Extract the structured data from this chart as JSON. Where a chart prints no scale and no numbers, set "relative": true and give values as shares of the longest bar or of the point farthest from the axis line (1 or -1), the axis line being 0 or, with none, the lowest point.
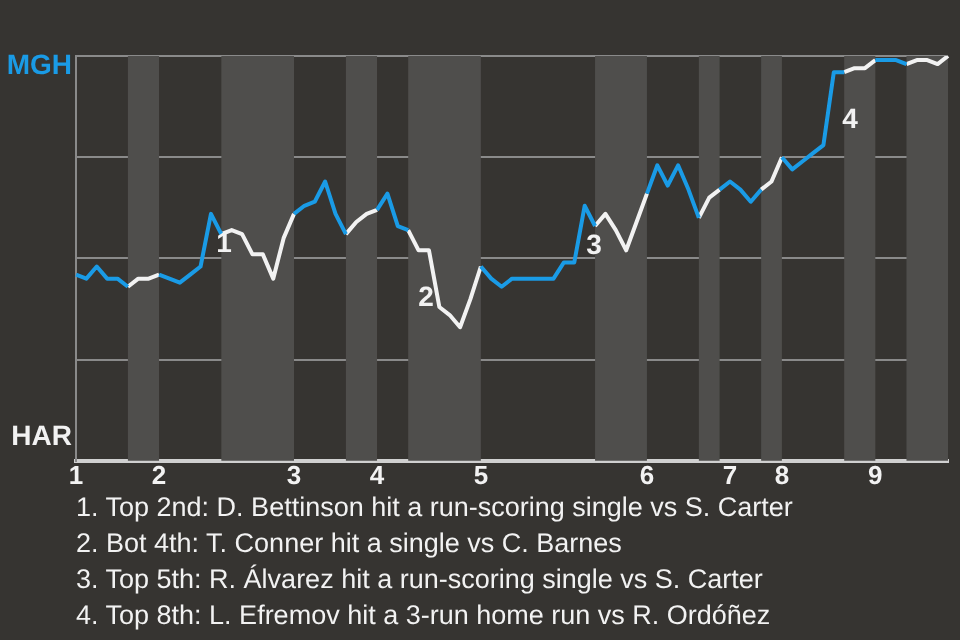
{
  "chart_data": {
    "type": "line",
    "relative": true,
    "categories": [
      "1",
      null,
      null,
      null,
      null,
      null,
      null,
      null,
      "2",
      null,
      null,
      null,
      null,
      null,
      null,
      null,
      null,
      null,
      null,
      null,
      null,
      "3",
      null,
      null,
      null,
      null,
      null,
      null,
      null,
      "4",
      null,
      null,
      null,
      null,
      null,
      null,
      null,
      null,
      null,
      "5",
      null,
      null,
      null,
      null,
      null,
      null,
      null,
      null,
      null,
      null,
      null,
      null,
      null,
      null,
      null,
      "6",
      null,
      null,
      null,
      null,
      null,
      null,
      null,
      "7",
      null,
      null,
      null,
      null,
      "8",
      null,
      null,
      null,
      null,
      null,
      null,
      null,
      null,
      "9",
      null,
      null,
      null,
      null,
      null,
      null,
      null
    ],
    "series": [
      {
        "color": "#1a9be6",
        "values": [
          0.46,
          0.45,
          0.48,
          0.45,
          0.45,
          0.43,
          null,
          null,
          0.46,
          0.45,
          0.44,
          0.46,
          0.48,
          0.61,
          0.56,
          null,
          null,
          null,
          null,
          null,
          null,
          0.61,
          0.63,
          0.64,
          0.69,
          0.61,
          0.56,
          null,
          null,
          0.62,
          0.66,
          0.58,
          0.57,
          null,
          null,
          null,
          null,
          null,
          null,
          0.48,
          0.45,
          0.43,
          0.45,
          0.45,
          0.45,
          0.45,
          0.45,
          0.49,
          0.49,
          0.63,
          0.58,
          null,
          null,
          null,
          null,
          0.66,
          0.73,
          0.68,
          0.73,
          0.67,
          0.6,
          null,
          0.67,
          0.69,
          0.67,
          0.64,
          0.67,
          null,
          0.75,
          0.72,
          0.74,
          0.76,
          0.78,
          0.96,
          0.96,
          null,
          null,
          0.99,
          0.99,
          0.99,
          0.98,
          null,
          null,
          null,
          null
        ]
      },
      {
        "color": "#f2f2f2",
        "values": [
          null,
          null,
          null,
          null,
          null,
          0.43,
          0.45,
          0.45,
          0.46,
          null,
          null,
          null,
          null,
          null,
          0.56,
          0.57,
          0.56,
          0.51,
          0.51,
          0.45,
          0.55,
          0.61,
          null,
          null,
          null,
          null,
          0.56,
          0.59,
          0.61,
          0.62,
          null,
          null,
          0.57,
          0.52,
          0.52,
          0.38,
          0.36,
          0.33,
          0.4,
          0.48,
          null,
          null,
          null,
          null,
          null,
          null,
          null,
          null,
          null,
          null,
          0.58,
          0.61,
          0.57,
          0.52,
          0.59,
          0.66,
          null,
          null,
          null,
          null,
          0.6,
          0.65,
          0.67,
          null,
          null,
          null,
          0.67,
          0.69,
          0.75,
          null,
          null,
          null,
          null,
          null,
          0.96,
          0.97,
          0.97,
          0.99,
          null,
          null,
          0.98,
          0.99,
          0.99,
          0.98,
          1
        ]
      }
    ],
    "grid": "y",
    "annotations": [
      "MGH",
      "HAR",
      "1",
      "2",
      "3",
      "4",
      "1. Top 2nd: D. Bettinson hit a run-scoring single vs S. Carter",
      "2. Bot 4th: T. Conner hit a single vs C. Barnes",
      "3. Top 5th: R. Álvarez hit a run-scoring single vs S. Carter",
      "4. Top 8th: L. Efremov hit a 3-run home run vs R. Ordóñez"
    ]
  }
}
